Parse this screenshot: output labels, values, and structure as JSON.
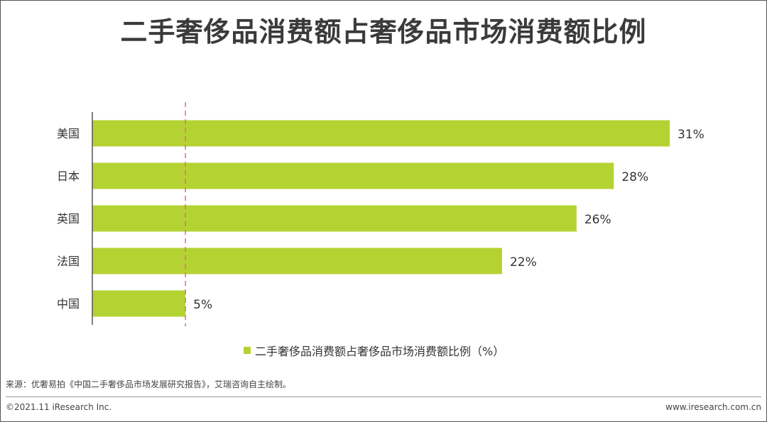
{
  "title": "二手奢侈品消费额占奢侈品市场消费额比例",
  "legend": {
    "label": "二手奢侈品消费额占奢侈品市场消费额比例（%）"
  },
  "source": "来源：优奢易拍《中国二手奢侈品市场发展研究报告》，艾瑞咨询自主绘制。",
  "footer": {
    "copyright": "©2021.11 iResearch Inc.",
    "website": "www.iresearch.com.cn"
  },
  "colors": {
    "bar": "#b4d333",
    "reference_line": "#e06a8a",
    "axis": "#555555"
  },
  "chart_data": {
    "type": "bar",
    "orientation": "horizontal",
    "categories": [
      "美国",
      "日本",
      "英国",
      "法国",
      "中国"
    ],
    "values": [
      31,
      28,
      26,
      22,
      5
    ],
    "value_labels": [
      "31%",
      "28%",
      "26%",
      "22%",
      "5%"
    ],
    "series": [
      {
        "name": "二手奢侈品消费额占奢侈品市场消费额比例（%）",
        "values": [
          31,
          28,
          26,
          22,
          5
        ]
      }
    ],
    "reference_line": {
      "value": 5,
      "style": "dashed"
    },
    "xlim": [
      0,
      31
    ],
    "grid": false,
    "legend_position": "bottom"
  }
}
